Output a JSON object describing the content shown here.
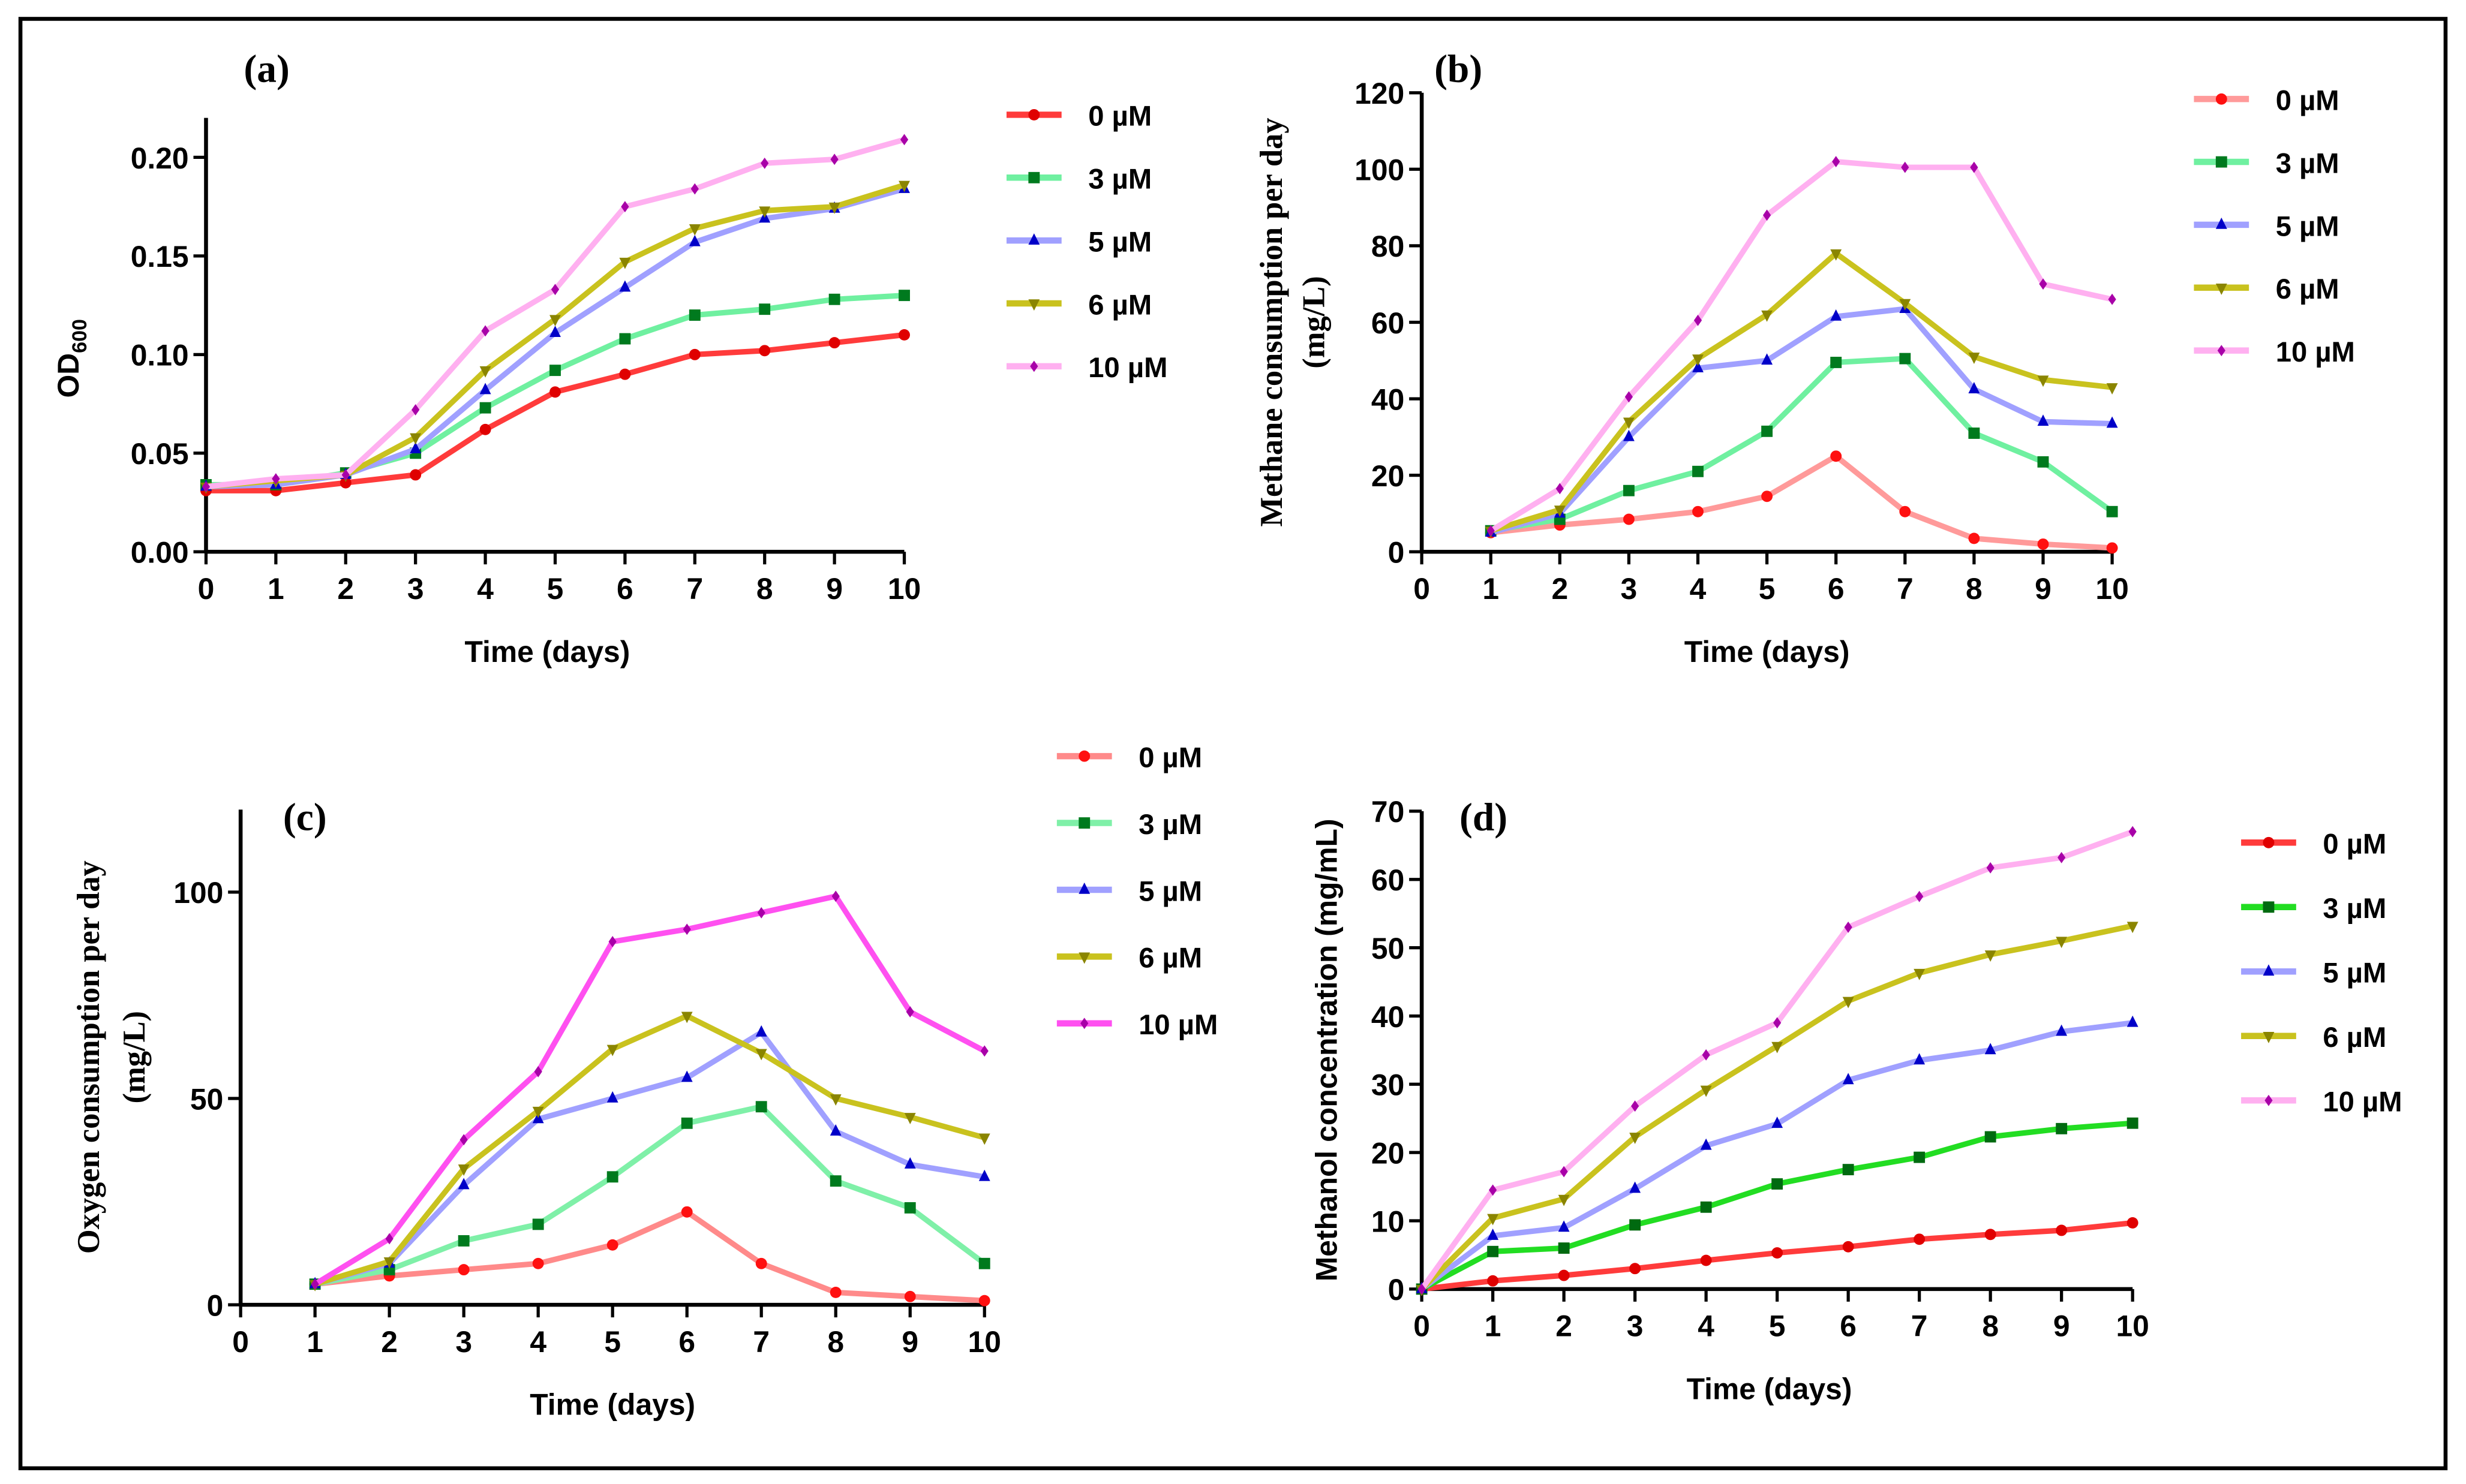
{
  "chart_data": [
    {
      "type": "line",
      "panel": "(a)",
      "xlabel": "Time (days)",
      "ylabel": "OD",
      "ylabel_sub": "600",
      "xlim": [
        0,
        10
      ],
      "ylim": [
        0,
        0.22
      ],
      "xticks": [
        "0",
        "1",
        "2",
        "3",
        "4",
        "5",
        "6",
        "7",
        "8",
        "9",
        "10"
      ],
      "yticks": [
        "0.00",
        "0.05",
        "0.10",
        "0.15",
        "0.20"
      ],
      "ytick_values": [
        0,
        0.05,
        0.1,
        0.15,
        0.2
      ],
      "legend": "right",
      "x": [
        0,
        1,
        2,
        3,
        4,
        5,
        6,
        7,
        8,
        9,
        10
      ],
      "series": [
        {
          "name": "0 µM",
          "line": "#ff3b3b",
          "marker": "#e00000",
          "shape": "circle",
          "values": [
            0.031,
            0.031,
            0.035,
            0.039,
            0.062,
            0.081,
            0.09,
            0.1,
            0.102,
            0.106,
            0.11
          ]
        },
        {
          "name": "3 µM",
          "line": "#6ff0a0",
          "marker": "#007a1e",
          "shape": "square",
          "values": [
            0.034,
            0.034,
            0.04,
            0.05,
            0.073,
            0.092,
            0.108,
            0.12,
            0.123,
            0.128,
            0.13
          ]
        },
        {
          "name": "5 µM",
          "line": "#a0a0ff",
          "marker": "#0000c8",
          "shape": "triangle-up",
          "values": [
            0.033,
            0.034,
            0.039,
            0.052,
            0.082,
            0.111,
            0.134,
            0.157,
            0.169,
            0.174,
            0.184
          ]
        },
        {
          "name": "6 µM",
          "line": "#c9c21e",
          "marker": "#8a8500",
          "shape": "triangle-down",
          "values": [
            0.033,
            0.036,
            0.039,
            0.058,
            0.092,
            0.118,
            0.147,
            0.164,
            0.173,
            0.175,
            0.186
          ]
        },
        {
          "name": "10 µM",
          "line": "#ffb0f0",
          "marker": "#a800a8",
          "shape": "diamond",
          "values": [
            0.033,
            0.037,
            0.039,
            0.072,
            0.112,
            0.133,
            0.175,
            0.184,
            0.197,
            0.199,
            0.209
          ]
        }
      ]
    },
    {
      "type": "line",
      "panel": "(b)",
      "xlabel": "Time (days)",
      "ylabel": "Methane consumption per day",
      "ylabel2": "(mg/L)",
      "xlim": [
        0,
        10
      ],
      "ylim": [
        0,
        120
      ],
      "xticks": [
        "0",
        "1",
        "2",
        "3",
        "4",
        "5",
        "6",
        "7",
        "8",
        "9",
        "10"
      ],
      "yticks": [
        "0",
        "20",
        "40",
        "60",
        "80",
        "100",
        "120"
      ],
      "ytick_values": [
        0,
        20,
        40,
        60,
        80,
        100,
        120
      ],
      "legend": "right",
      "x": [
        1,
        2,
        3,
        4,
        5,
        6,
        7,
        8,
        9,
        10
      ],
      "series": [
        {
          "name": "0 µM",
          "line": "#ff9a9a",
          "marker": "#ff1010",
          "shape": "circle",
          "values": [
            5,
            7,
            8.5,
            10.5,
            14.5,
            25,
            10.5,
            3.5,
            2,
            1
          ]
        },
        {
          "name": "3 µM",
          "line": "#6ff0a0",
          "marker": "#007a1e",
          "shape": "square",
          "values": [
            5.5,
            8.5,
            16,
            21,
            31.5,
            49.5,
            50.5,
            31,
            23.5,
            10.5
          ]
        },
        {
          "name": "5 µM",
          "line": "#a0a0ff",
          "marker": "#0000c8",
          "shape": "triangle-up",
          "values": [
            5,
            10,
            30,
            48,
            50,
            61.5,
            63.5,
            42.5,
            34,
            33.5
          ]
        },
        {
          "name": "6 µM",
          "line": "#c9c21e",
          "marker": "#8a8500",
          "shape": "triangle-down",
          "values": [
            5.5,
            11,
            34,
            50.5,
            62,
            78,
            65,
            51,
            45,
            43
          ]
        },
        {
          "name": "10 µM",
          "line": "#ffb0f0",
          "marker": "#a800a8",
          "shape": "diamond",
          "values": [
            5.5,
            16.5,
            40.5,
            60.5,
            88,
            102,
            100.5,
            100.5,
            70,
            66
          ]
        }
      ]
    },
    {
      "type": "line",
      "panel": "(c)",
      "xlabel": "Time (days)",
      "ylabel": "Oxygen consumption per day",
      "ylabel2": "(mg/L)",
      "xlim": [
        0,
        10
      ],
      "ylim": [
        0,
        120
      ],
      "xticks": [
        "0",
        "1",
        "2",
        "3",
        "4",
        "5",
        "6",
        "7",
        "8",
        "9",
        "10"
      ],
      "yticks": [
        "0",
        "50",
        "100"
      ],
      "ytick_values": [
        0,
        50,
        100
      ],
      "legend": "right",
      "x": [
        1,
        2,
        3,
        4,
        5,
        6,
        7,
        8,
        9,
        10
      ],
      "series": [
        {
          "name": "0 µM",
          "line": "#ff8a8a",
          "marker": "#ff1010",
          "shape": "circle",
          "values": [
            5,
            7,
            8.5,
            10,
            14.5,
            22.5,
            10,
            3,
            2,
            1
          ]
        },
        {
          "name": "3 µM",
          "line": "#7ff0a8",
          "marker": "#007a1e",
          "shape": "square",
          "values": [
            5,
            8.5,
            15.5,
            19.5,
            31,
            44,
            48,
            30,
            23.5,
            10
          ]
        },
        {
          "name": "5 µM",
          "line": "#a0a0ff",
          "marker": "#0000c8",
          "shape": "triangle-up",
          "values": [
            5,
            10,
            29,
            45,
            50,
            55,
            66,
            42,
            34,
            31
          ]
        },
        {
          "name": "6 µM",
          "line": "#c9c21e",
          "marker": "#8a8500",
          "shape": "triangle-down",
          "values": [
            5,
            10.5,
            33,
            47,
            62,
            70,
            61,
            50,
            45.5,
            40.5
          ]
        },
        {
          "name": "10 µM",
          "line": "#ff50f0",
          "marker": "#a800a8",
          "shape": "diamond",
          "values": [
            5,
            16,
            40,
            56.5,
            88,
            91,
            95,
            99,
            71,
            61.5
          ]
        }
      ]
    },
    {
      "type": "line",
      "panel": "(d)",
      "xlabel": "Time (days)",
      "ylabel": "Methanol concentration (mg/mL)",
      "xlim": [
        0,
        10
      ],
      "ylim": [
        0,
        70
      ],
      "xticks": [
        "0",
        "1",
        "2",
        "3",
        "4",
        "5",
        "6",
        "7",
        "8",
        "9",
        "10"
      ],
      "yticks": [
        "0",
        "10",
        "20",
        "30",
        "40",
        "50",
        "60",
        "70"
      ],
      "ytick_values": [
        0,
        10,
        20,
        30,
        40,
        50,
        60,
        70
      ],
      "legend": "right",
      "x": [
        0,
        1,
        2,
        3,
        4,
        5,
        6,
        7,
        8,
        9,
        10
      ],
      "series": [
        {
          "name": "0 µM",
          "line": "#ff3b3b",
          "marker": "#e00000",
          "shape": "circle",
          "values": [
            0,
            1.2,
            2,
            3,
            4.2,
            5.3,
            6.2,
            7.3,
            8,
            8.6,
            9.7
          ]
        },
        {
          "name": "3 µM",
          "line": "#22dd22",
          "marker": "#006a10",
          "shape": "square",
          "values": [
            0,
            5.5,
            6,
            9.4,
            12,
            15.4,
            17.5,
            19.3,
            22.3,
            23.5,
            24.3
          ]
        },
        {
          "name": "5 µM",
          "line": "#a0a0ff",
          "marker": "#0000c8",
          "shape": "triangle-up",
          "values": [
            0,
            7.8,
            9,
            14.7,
            21,
            24.2,
            30.6,
            33.5,
            35,
            37.7,
            39
          ]
        },
        {
          "name": "6 µM",
          "line": "#c9c21e",
          "marker": "#8a8500",
          "shape": "triangle-down",
          "values": [
            0,
            10.4,
            13.2,
            22.3,
            29.2,
            35.6,
            42.2,
            46.3,
            49,
            51,
            53.2
          ]
        },
        {
          "name": "10 µM",
          "line": "#ffb0f0",
          "marker": "#a800a8",
          "shape": "diamond",
          "values": [
            0,
            14.5,
            17.2,
            26.8,
            34.3,
            39,
            53,
            57.5,
            61.7,
            63.2,
            67
          ]
        }
      ]
    }
  ]
}
